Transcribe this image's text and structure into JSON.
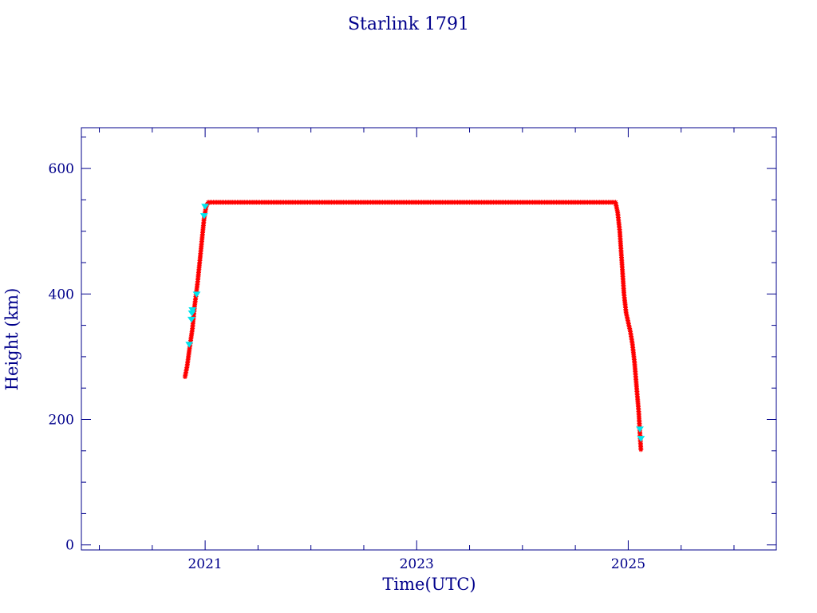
{
  "chart_data": {
    "type": "scatter",
    "title": "Starlink 1791",
    "xlabel": "Time(UTC)",
    "ylabel": "Height (km)",
    "xlim": [
      2019.83,
      2026.4
    ],
    "ylim": [
      -8,
      665
    ],
    "x_ticks": [
      {
        "value": 2021,
        "label": "2021"
      },
      {
        "value": 2023,
        "label": "2023"
      },
      {
        "value": 2025,
        "label": "2025"
      }
    ],
    "y_ticks": [
      {
        "value": 0,
        "label": "0"
      },
      {
        "value": 200,
        "label": "200"
      },
      {
        "value": 400,
        "label": "400"
      },
      {
        "value": 600,
        "label": "600"
      }
    ],
    "x_minor_step": 0.5,
    "y_minor_step": 50,
    "grid": false,
    "colors": {
      "axes": "#00008b",
      "text": "#00008b",
      "primary_marker": "#ff0000",
      "secondary_marker": "#00e5ee",
      "background": "#ffffff"
    },
    "series": [
      {
        "marker": "asterisk",
        "color": "#ff0000",
        "profile": [
          [
            2020.81,
            268
          ],
          [
            2020.83,
            285
          ],
          [
            2020.85,
            310
          ],
          [
            2020.88,
            345
          ],
          [
            2020.9,
            380
          ],
          [
            2020.93,
            420
          ],
          [
            2020.96,
            470
          ],
          [
            2020.99,
            520
          ],
          [
            2021.01,
            540
          ],
          [
            2021.03,
            546
          ],
          [
            2021.5,
            546
          ],
          [
            2022.0,
            546
          ],
          [
            2022.5,
            546
          ],
          [
            2023.0,
            546
          ],
          [
            2023.5,
            546
          ],
          [
            2024.0,
            546
          ],
          [
            2024.5,
            546
          ],
          [
            2024.88,
            546
          ],
          [
            2024.9,
            530
          ],
          [
            2024.92,
            500
          ],
          [
            2024.94,
            450
          ],
          [
            2024.96,
            400
          ],
          [
            2024.98,
            370
          ],
          [
            2025.0,
            355
          ],
          [
            2025.02,
            340
          ],
          [
            2025.04,
            320
          ],
          [
            2025.06,
            290
          ],
          [
            2025.08,
            250
          ],
          [
            2025.1,
            210
          ],
          [
            2025.11,
            180
          ],
          [
            2025.12,
            152
          ]
        ]
      },
      {
        "marker": "triangle",
        "color": "#00e5ee",
        "points": [
          [
            2020.85,
            320
          ],
          [
            2020.87,
            360
          ],
          [
            2020.875,
            370
          ],
          [
            2020.88,
            375
          ],
          [
            2020.92,
            400
          ],
          [
            2020.99,
            525
          ],
          [
            2021.0,
            540
          ],
          [
            2025.11,
            185
          ],
          [
            2025.12,
            170
          ]
        ]
      }
    ]
  }
}
